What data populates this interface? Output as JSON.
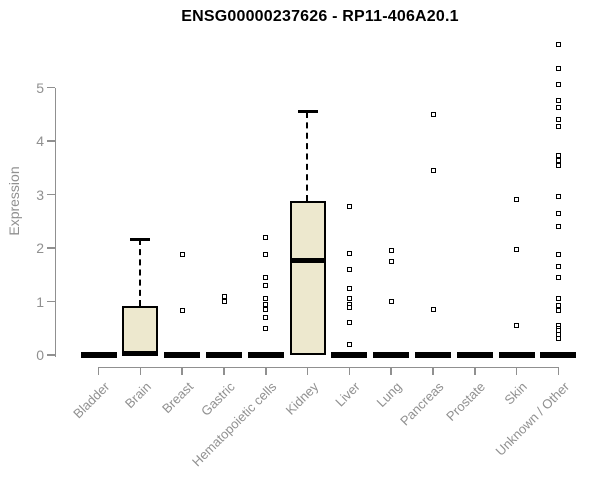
{
  "chart_data": {
    "type": "boxplot",
    "title": "ENSG00000237626 - RP11-406A20.1",
    "ylabel": "Expression",
    "xlabel": "",
    "ylim": [
      0,
      5
    ],
    "yticks": [
      0,
      1,
      2,
      3,
      4,
      5
    ],
    "grid": false,
    "legend": "none",
    "colors": {
      "box_fill": "#EDE8CE",
      "box_line": "#000000",
      "axis": "#909090",
      "title_text": "#000000"
    },
    "categories": [
      "Bladder",
      "Brain",
      "Breast",
      "Gastric",
      "Hematopoietic cells",
      "Kidney",
      "Liver",
      "Lung",
      "Pancreas",
      "Prostate",
      "Skin",
      "Unknown / Other"
    ],
    "boxes": [
      {
        "category": "Bladder",
        "q1": 0,
        "median": 0,
        "q3": 0,
        "whisker_low": 0,
        "whisker_high": 0,
        "outliers": []
      },
      {
        "category": "Brain",
        "q1": 0,
        "median": 0.03,
        "q3": 0.91,
        "whisker_low": 0,
        "whisker_high": 2.16,
        "outliers": []
      },
      {
        "category": "Breast",
        "q1": 0,
        "median": 0,
        "q3": 0,
        "whisker_low": 0,
        "whisker_high": 0,
        "outliers": [
          1.87,
          0.83
        ]
      },
      {
        "category": "Gastric",
        "q1": 0,
        "median": 0,
        "q3": 0,
        "whisker_low": 0,
        "whisker_high": 0,
        "outliers": [
          1.1,
          1.0
        ]
      },
      {
        "category": "Hematopoietic cells",
        "q1": 0,
        "median": 0,
        "q3": 0,
        "whisker_low": 0,
        "whisker_high": 0,
        "outliers": [
          2.2,
          1.87,
          1.45,
          1.3,
          1.05,
          0.95,
          0.85,
          0.7,
          0.5
        ]
      },
      {
        "category": "Kidney",
        "q1": 0,
        "median": 1.77,
        "q3": 2.88,
        "whisker_low": 0,
        "whisker_high": 4.55,
        "outliers": []
      },
      {
        "category": "Liver",
        "q1": 0,
        "median": 0,
        "q3": 0,
        "whisker_low": 0,
        "whisker_high": 0,
        "outliers": [
          2.78,
          1.9,
          1.6,
          1.25,
          1.05,
          0.95,
          0.88,
          0.6,
          0.19
        ]
      },
      {
        "category": "Lung",
        "q1": 0,
        "median": 0,
        "q3": 0,
        "whisker_low": 0,
        "whisker_high": 0,
        "outliers": [
          1.95,
          1.75,
          1.0
        ]
      },
      {
        "category": "Pancreas",
        "q1": 0,
        "median": 0,
        "q3": 0,
        "whisker_low": 0,
        "whisker_high": 0,
        "outliers": [
          4.5,
          3.45,
          0.85
        ]
      },
      {
        "category": "Prostate",
        "q1": 0,
        "median": 0,
        "q3": 0,
        "whisker_low": 0,
        "whisker_high": 0,
        "outliers": []
      },
      {
        "category": "Skin",
        "q1": 0,
        "median": 0,
        "q3": 0,
        "whisker_low": 0,
        "whisker_high": 0,
        "outliers": [
          2.9,
          1.98,
          0.56
        ]
      },
      {
        "category": "Unknown / Other",
        "q1": 0,
        "median": 0,
        "q3": 0,
        "whisker_low": 0,
        "whisker_high": 0,
        "outliers": [
          5.8,
          5.35,
          5.05,
          4.75,
          4.63,
          4.4,
          4.27,
          3.73,
          3.64,
          3.54,
          2.97,
          2.65,
          2.4,
          1.87,
          1.66,
          1.45,
          1.05,
          0.93,
          0.84,
          0.55,
          0.5,
          0.45,
          0.38,
          0.3
        ]
      }
    ]
  }
}
